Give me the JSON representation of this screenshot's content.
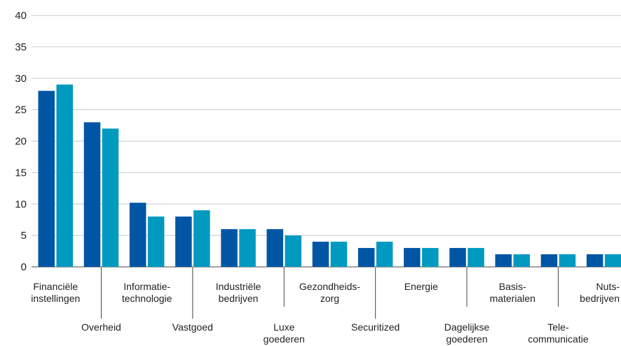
{
  "chart_data": {
    "type": "bar",
    "ylim": [
      0,
      40
    ],
    "yticks": [
      0,
      5,
      10,
      15,
      20,
      25,
      30,
      35,
      40
    ],
    "grid": true,
    "categories": [
      {
        "lines": [
          "Financiële",
          "instellingen"
        ],
        "row": "top"
      },
      {
        "lines": [
          "Overheid"
        ],
        "row": "bottom"
      },
      {
        "lines": [
          "Informatie-",
          "technologie"
        ],
        "row": "top"
      },
      {
        "lines": [
          "Vastgoed"
        ],
        "row": "bottom"
      },
      {
        "lines": [
          "Industriële",
          "bedrijven"
        ],
        "row": "top"
      },
      {
        "lines": [
          "Luxe",
          "goederen"
        ],
        "row": "bottom"
      },
      {
        "lines": [
          "Gezondheids-",
          "zorg"
        ],
        "row": "top"
      },
      {
        "lines": [
          "Securitized"
        ],
        "row": "bottom"
      },
      {
        "lines": [
          "Energie"
        ],
        "row": "top"
      },
      {
        "lines": [
          "Dagelijkse",
          "goederen"
        ],
        "row": "bottom"
      },
      {
        "lines": [
          "Basis-",
          "materialen"
        ],
        "row": "top"
      },
      {
        "lines": [
          "Tele-",
          "communicatie"
        ],
        "row": "bottom"
      },
      {
        "lines": [
          "Nuts-",
          "bedrijven"
        ],
        "row": "top"
      }
    ],
    "series": [
      {
        "color": "#0055a4",
        "values": [
          28,
          23,
          10.2,
          8,
          6,
          6,
          4,
          3,
          3,
          3,
          2,
          2,
          2
        ]
      },
      {
        "color": "#0099c0",
        "values": [
          29,
          22,
          8,
          9,
          6,
          5,
          4,
          4,
          3,
          3,
          2,
          2,
          2
        ]
      }
    ]
  }
}
